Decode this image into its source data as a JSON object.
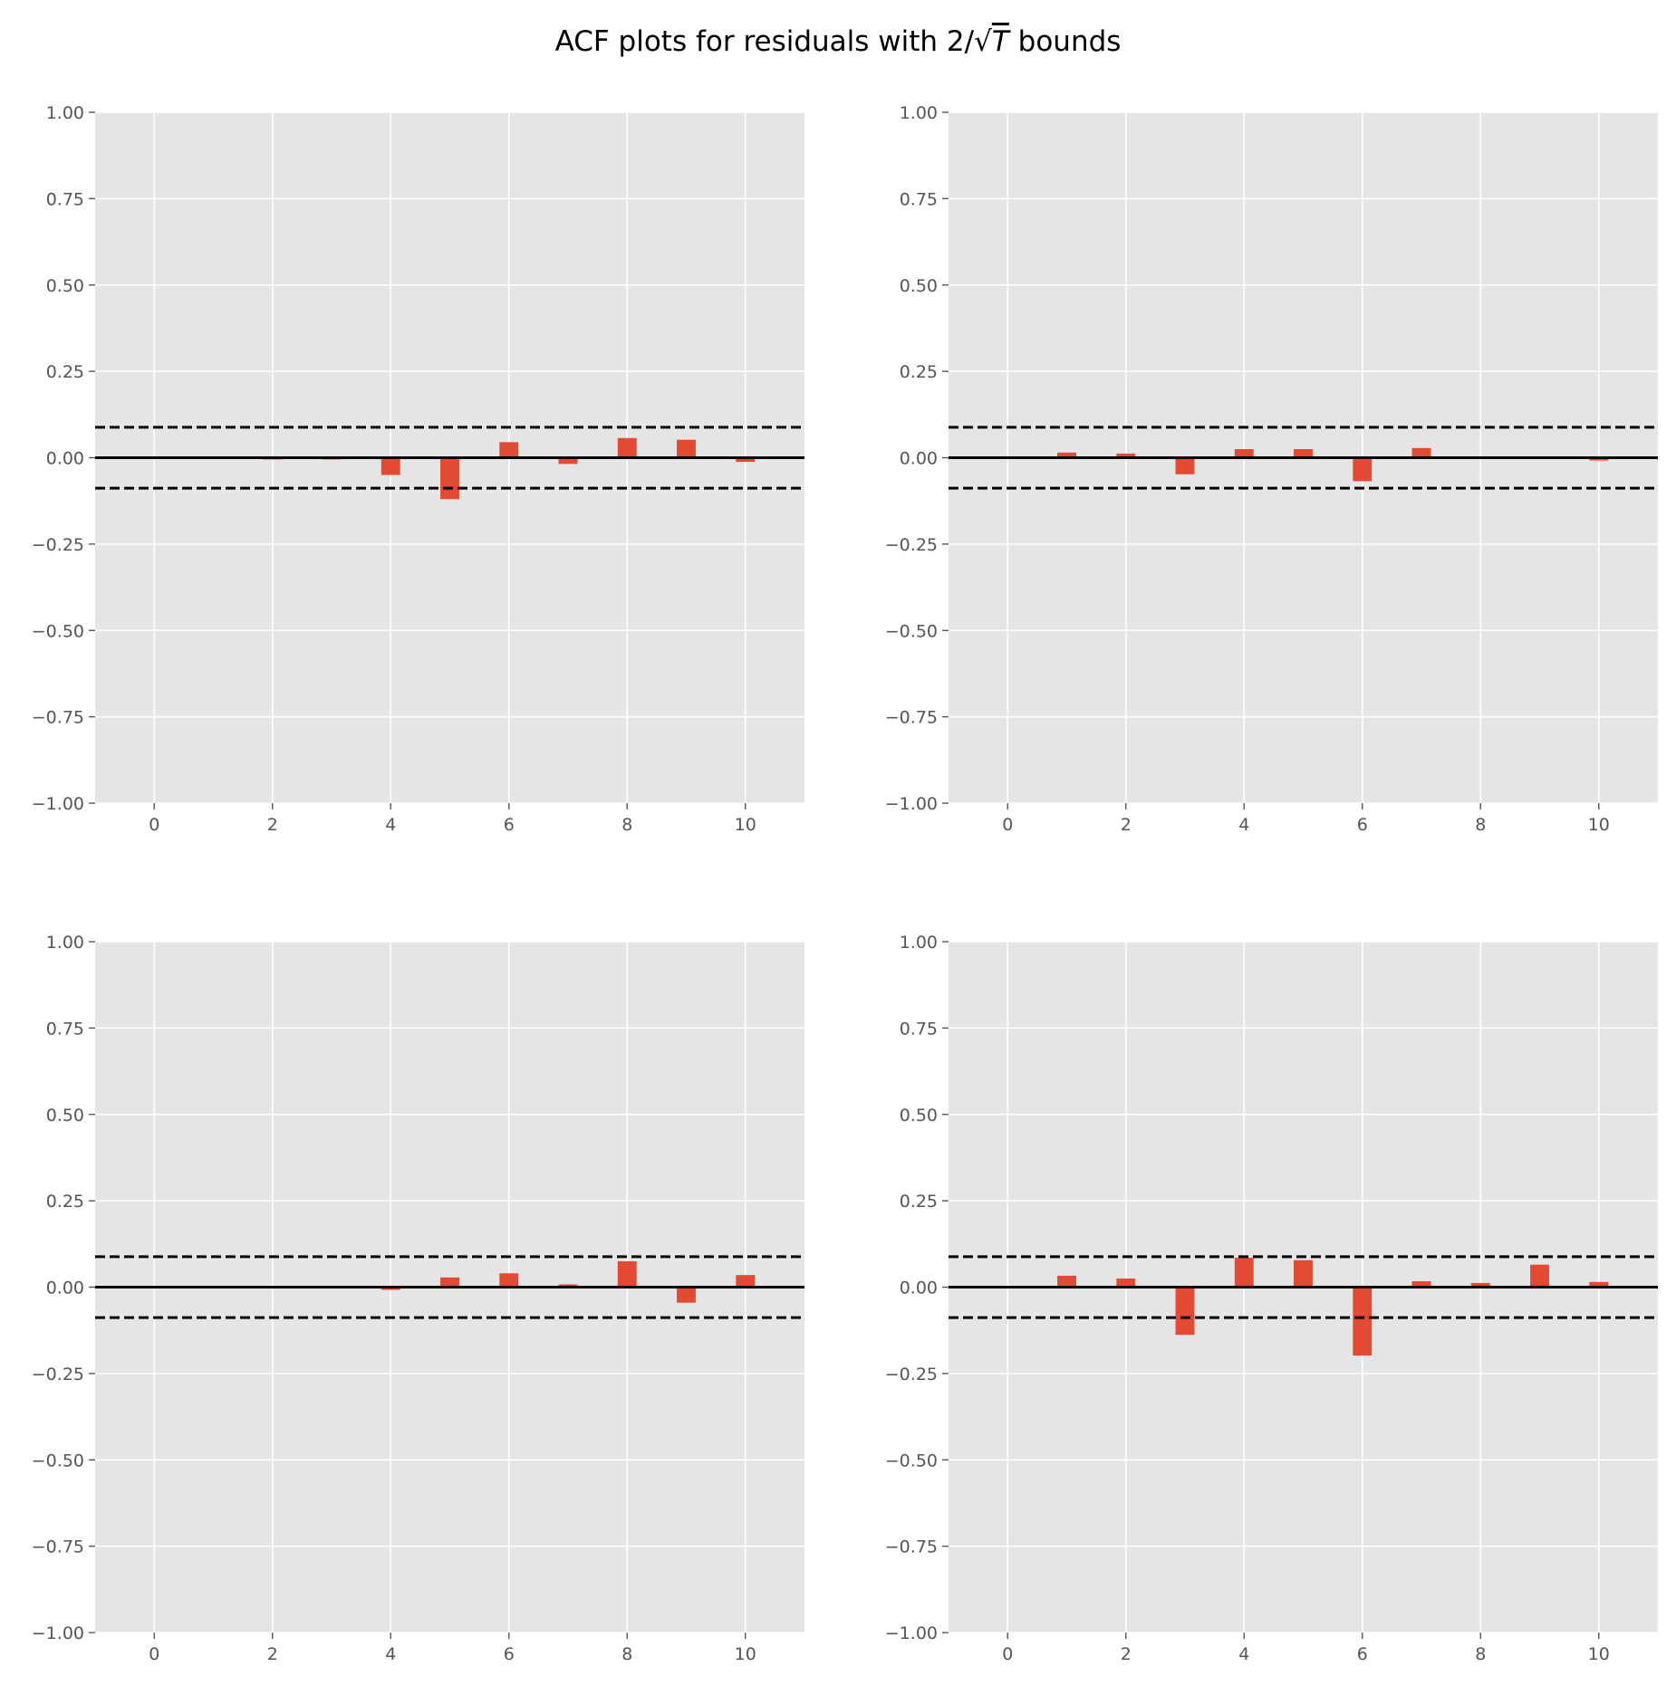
{
  "figure": {
    "title_prefix": "ACF plots for residuals with 2/",
    "title_radical": "√",
    "title_var": "T",
    "title_suffix": " bounds"
  },
  "colors": {
    "bar": "#E24A33",
    "panel_bg": "#E5E5E5",
    "grid": "#FFFFFF",
    "zero_line": "#000000",
    "bound_line": "#000000",
    "tick_text": "#555555"
  },
  "chart_data": [
    {
      "type": "bar",
      "subplot": "top-left",
      "x": [
        0,
        1,
        2,
        3,
        4,
        5,
        6,
        7,
        8,
        9,
        10
      ],
      "values": [
        0.0,
        0.0,
        -0.005,
        -0.005,
        -0.05,
        -0.12,
        0.045,
        -0.018,
        0.057,
        0.052,
        -0.012
      ],
      "bounds": [
        -0.088,
        0.088
      ],
      "xlim": [
        -1,
        11
      ],
      "ylim": [
        -1.0,
        1.0
      ],
      "xticks": [
        "0",
        "2",
        "4",
        "6",
        "8",
        "10"
      ],
      "yticks": [
        "1.00",
        "0.75",
        "0.50",
        "0.25",
        "0.00",
        "−0.25",
        "−0.50",
        "−0.75",
        "−1.00"
      ],
      "grid": true,
      "legend": "none"
    },
    {
      "type": "bar",
      "subplot": "top-right",
      "x": [
        0,
        1,
        2,
        3,
        4,
        5,
        6,
        7,
        8,
        9,
        10
      ],
      "values": [
        0.0,
        0.015,
        0.012,
        -0.048,
        0.025,
        0.025,
        -0.068,
        0.028,
        0.0,
        0.0,
        -0.008
      ],
      "bounds": [
        -0.088,
        0.088
      ],
      "xlim": [
        -1,
        11
      ],
      "ylim": [
        -1.0,
        1.0
      ],
      "xticks": [
        "0",
        "2",
        "4",
        "6",
        "8",
        "10"
      ],
      "yticks": [
        "1.00",
        "0.75",
        "0.50",
        "0.25",
        "0.00",
        "−0.25",
        "−0.50",
        "−0.75",
        "−1.00"
      ],
      "grid": true,
      "legend": "none"
    },
    {
      "type": "bar",
      "subplot": "bottom-left",
      "x": [
        0,
        1,
        2,
        3,
        4,
        5,
        6,
        7,
        8,
        9,
        10
      ],
      "values": [
        0.0,
        0.0,
        0.0,
        0.0,
        -0.008,
        0.028,
        0.04,
        0.008,
        0.075,
        -0.045,
        0.035
      ],
      "bounds": [
        -0.088,
        0.088
      ],
      "xlim": [
        -1,
        11
      ],
      "ylim": [
        -1.0,
        1.0
      ],
      "xticks": [
        "0",
        "2",
        "4",
        "6",
        "8",
        "10"
      ],
      "yticks": [
        "1.00",
        "0.75",
        "0.50",
        "0.25",
        "0.00",
        "−0.25",
        "−0.50",
        "−0.75",
        "−1.00"
      ],
      "grid": true,
      "legend": "none"
    },
    {
      "type": "bar",
      "subplot": "bottom-right",
      "x": [
        0,
        1,
        2,
        3,
        4,
        5,
        6,
        7,
        8,
        9,
        10
      ],
      "values": [
        0.0,
        0.033,
        0.025,
        -0.138,
        0.085,
        0.078,
        -0.198,
        0.017,
        0.012,
        0.065,
        0.015
      ],
      "bounds": [
        -0.088,
        0.088
      ],
      "xlim": [
        -1,
        11
      ],
      "ylim": [
        -1.0,
        1.0
      ],
      "xticks": [
        "0",
        "2",
        "4",
        "6",
        "8",
        "10"
      ],
      "yticks": [
        "1.00",
        "0.75",
        "0.50",
        "0.25",
        "0.00",
        "−0.25",
        "−0.50",
        "−0.75",
        "−1.00"
      ],
      "grid": true,
      "legend": "none"
    }
  ]
}
